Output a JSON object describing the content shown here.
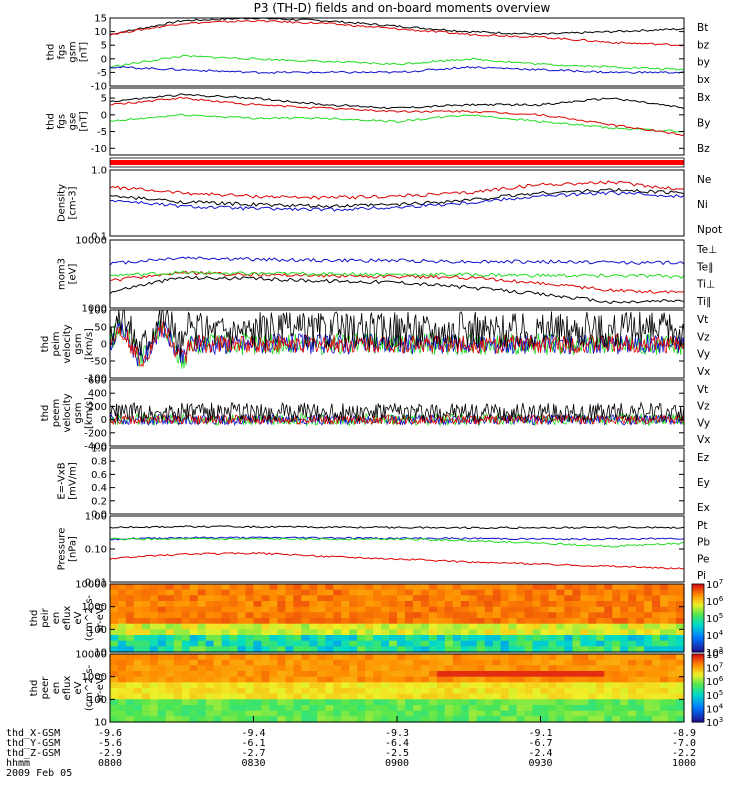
{
  "title": "P3 (TH-D) fields and on-board moments overview",
  "date": "2009 Feb 05",
  "colors": {
    "black": "#000000",
    "red": "#dd0000",
    "green": "#22dd22",
    "blue": "#1010cc"
  },
  "footer": {
    "rows": [
      {
        "label": "thd_X-GSM",
        "values": [
          "-9.6",
          "-9.4",
          "-9.3",
          "-9.1",
          "-8.9"
        ]
      },
      {
        "label": "thd_Y-GSM",
        "values": [
          "-5.6",
          "-6.1",
          "-6.4",
          "-6.7",
          "-7.0"
        ]
      },
      {
        "label": "thd_Z-GSM",
        "values": [
          "-2.9",
          "-2.7",
          "-2.5",
          "-2.4",
          "-2.2"
        ]
      },
      {
        "label": "hhmm",
        "values": [
          "0800",
          "0830",
          "0900",
          "0930",
          "1000"
        ]
      }
    ]
  },
  "chart_data": [
    {
      "type": "line",
      "panel": "fgs_btot",
      "ylabel": [
        "thd",
        "fgs",
        "gsm",
        "[nT]"
      ],
      "ylim": [
        -10,
        15
      ],
      "yticks": [
        "15",
        "10",
        "5",
        "0",
        "-5",
        "-10"
      ],
      "legend": [
        {
          "text": "Bt",
          "color": "black"
        },
        {
          "text": "bz",
          "color": "red"
        },
        {
          "text": "by",
          "color": "green"
        },
        {
          "text": "bx",
          "color": "blue"
        }
      ],
      "x": [
        "0800",
        "0815",
        "0830",
        "0845",
        "0900",
        "0915",
        "0930",
        "0945",
        "1000"
      ],
      "series": [
        {
          "name": "Bt",
          "values": [
            9,
            14,
            15,
            14,
            12,
            10,
            9,
            10,
            11
          ]
        },
        {
          "name": "bz",
          "values": [
            9,
            13,
            14,
            13,
            11,
            9,
            8,
            6,
            5
          ]
        },
        {
          "name": "by",
          "values": [
            -3,
            1,
            0,
            -1,
            -2,
            0,
            -2,
            -3,
            -4
          ]
        },
        {
          "name": "bx",
          "values": [
            -3,
            -4,
            -5,
            -5,
            -5,
            -3,
            -4,
            -5,
            -5
          ]
        }
      ]
    },
    {
      "type": "line",
      "panel": "fgs_gsm",
      "ylabel": [
        "thd",
        "fgs",
        "gse",
        "[nT]"
      ],
      "ylim": [
        -12,
        8
      ],
      "yticks": [
        "5",
        "0",
        "-5",
        "-10"
      ],
      "legend": [
        {
          "text": "Bx",
          "color": "black"
        },
        {
          "text": "By",
          "color": "green"
        },
        {
          "text": "Bz",
          "color": "red"
        }
      ],
      "x": [
        "0800",
        "0815",
        "0830",
        "0845",
        "0900",
        "0915",
        "0930",
        "0945",
        "1000"
      ],
      "series": [
        {
          "name": "Bx",
          "values": [
            4,
            6,
            5,
            3,
            2,
            3,
            3,
            5,
            2
          ]
        },
        {
          "name": "By",
          "values": [
            -2,
            0,
            -1,
            -1,
            -2,
            0,
            -2,
            -4,
            -5
          ]
        },
        {
          "name": "Bz",
          "values": [
            3,
            5,
            3,
            2,
            1,
            1,
            0,
            -3,
            -6
          ]
        }
      ]
    },
    {
      "type": "line",
      "panel": "density",
      "ylabel": [
        "Density",
        "[cm-3]"
      ],
      "yscale": "log",
      "ylim": [
        0.1,
        1.0
      ],
      "yticks": [
        "1.0",
        "0.1"
      ],
      "legend": [
        {
          "text": "Ne",
          "color": "red"
        },
        {
          "text": "Ni",
          "color": "black"
        },
        {
          "text": "Npot",
          "color": "blue"
        }
      ],
      "x": [
        "0800",
        "0815",
        "0830",
        "0845",
        "0900",
        "0915",
        "0930",
        "0945",
        "1000"
      ],
      "series": [
        {
          "name": "Ne",
          "values": [
            0.55,
            0.45,
            0.4,
            0.38,
            0.4,
            0.45,
            0.6,
            0.65,
            0.5
          ]
        },
        {
          "name": "Ni",
          "values": [
            0.4,
            0.33,
            0.3,
            0.28,
            0.3,
            0.35,
            0.45,
            0.5,
            0.45
          ]
        },
        {
          "name": "Npot",
          "values": [
            0.35,
            0.28,
            0.26,
            0.25,
            0.27,
            0.32,
            0.4,
            0.45,
            0.4
          ]
        }
      ]
    },
    {
      "type": "line",
      "panel": "temperature",
      "ylabel": [
        "mom3",
        "[eV]"
      ],
      "yscale": "log",
      "ylim": [
        1000,
        10000
      ],
      "yticks": [
        "10000",
        "1000"
      ],
      "legend": [
        {
          "text": "Te⊥",
          "color": "red"
        },
        {
          "text": "Te∥",
          "color": "black"
        },
        {
          "text": "Ti⊥",
          "color": "red"
        },
        {
          "text": "Ti∥",
          "color": "green"
        }
      ],
      "x": [
        "0800",
        "0815",
        "0830",
        "0845",
        "0900",
        "0915",
        "0930",
        "0945",
        "1000"
      ],
      "series": [
        {
          "name": "Ti",
          "values": [
            4500,
            5500,
            5200,
            5000,
            5000,
            4800,
            4800,
            4700,
            4600
          ]
        },
        {
          "name": "Te⊥",
          "values": [
            2500,
            3300,
            3100,
            3000,
            2900,
            2800,
            2300,
            1800,
            1700
          ]
        },
        {
          "name": "Te∥",
          "values": [
            1700,
            2800,
            2700,
            2500,
            2400,
            2000,
            1600,
            1200,
            1300
          ]
        },
        {
          "name": "Ti∥",
          "values": [
            3000,
            3300,
            3200,
            3200,
            3100,
            3100,
            3000,
            3000,
            2900
          ]
        }
      ]
    },
    {
      "type": "line",
      "panel": "peim_velocity",
      "ylabel": [
        "thd",
        "peim",
        "velocity",
        "gsm",
        "[km/s]"
      ],
      "ylim": [
        -100,
        100
      ],
      "yticks": [
        "100",
        "50",
        "0",
        "-50",
        "-100"
      ],
      "legend": [
        {
          "text": "Vt",
          "color": "black"
        },
        {
          "text": "Vz",
          "color": "red"
        },
        {
          "text": "Vy",
          "color": "green"
        },
        {
          "text": "Vx",
          "color": "blue"
        }
      ],
      "x": [
        "0800",
        "0830",
        "0900",
        "0930",
        "1000"
      ],
      "series": [
        {
          "name": "Vt",
          "values": [
            30,
            35,
            30,
            30,
            30
          ]
        },
        {
          "name": "Vx",
          "values": [
            0,
            0,
            0,
            0,
            0
          ]
        }
      ]
    },
    {
      "type": "line",
      "panel": "peem_velocity",
      "ylabel": [
        "thd",
        "peem",
        "velocity",
        "gsm",
        "[km/s]"
      ],
      "ylim": [
        -400,
        600
      ],
      "yticks": [
        "600",
        "400",
        "200",
        "0",
        "-200",
        "-400"
      ],
      "legend": [
        {
          "text": "Vt",
          "color": "black"
        },
        {
          "text": "Vz",
          "color": "red"
        },
        {
          "text": "Vy",
          "color": "green"
        },
        {
          "text": "Vx",
          "color": "blue"
        }
      ],
      "x": [
        "0800",
        "0830",
        "0900",
        "0930",
        "1000"
      ],
      "series": [
        {
          "name": "Vt",
          "values": [
            150,
            150,
            150,
            150,
            150
          ]
        },
        {
          "name": "Vx",
          "values": [
            0,
            0,
            0,
            0,
            0
          ]
        }
      ]
    },
    {
      "type": "line",
      "panel": "efield",
      "ylabel": [
        "E=-VxB",
        "[mV/m]"
      ],
      "ylim": [
        0,
        1.0
      ],
      "yticks": [
        "1.0",
        "0.8",
        "0.6",
        "0.4",
        "0.2",
        "0.0"
      ],
      "legend": [
        {
          "text": "Ez",
          "color": "red"
        },
        {
          "text": "Ey",
          "color": "green"
        },
        {
          "text": "Ex",
          "color": "blue"
        }
      ],
      "x": [],
      "series": []
    },
    {
      "type": "line",
      "panel": "pressure",
      "ylabel": [
        "Pressure",
        "[nPa]"
      ],
      "yscale": "log",
      "ylim": [
        0.01,
        1.0
      ],
      "yticks": [
        "1.00",
        "0.10",
        "0.01"
      ],
      "legend": [
        {
          "text": "Pt",
          "color": "black"
        },
        {
          "text": "Pb",
          "color": "red"
        },
        {
          "text": "Pe",
          "color": "green"
        },
        {
          "text": "Pi",
          "color": "blue"
        }
      ],
      "x": [
        "0800",
        "0815",
        "0830",
        "0845",
        "0900",
        "0915",
        "0930",
        "0945",
        "1000"
      ],
      "series": [
        {
          "name": "Pt",
          "values": [
            0.45,
            0.48,
            0.47,
            0.46,
            0.45,
            0.44,
            0.44,
            0.45,
            0.45
          ]
        },
        {
          "name": "Pi",
          "values": [
            0.2,
            0.22,
            0.22,
            0.22,
            0.21,
            0.21,
            0.2,
            0.2,
            0.21
          ]
        },
        {
          "name": "Pe",
          "values": [
            0.2,
            0.2,
            0.2,
            0.2,
            0.2,
            0.18,
            0.15,
            0.12,
            0.15
          ]
        },
        {
          "name": "Pb",
          "values": [
            0.05,
            0.07,
            0.075,
            0.06,
            0.05,
            0.04,
            0.035,
            0.03,
            0.025
          ]
        }
      ]
    },
    {
      "type": "heatmap",
      "panel": "peir_eflux",
      "ylabel": [
        "thd",
        "peir",
        "en",
        "eflux",
        "eV",
        "(cm^2-s-",
        "sr-eV)"
      ],
      "yscale": "log",
      "ylim": [
        10,
        10000
      ],
      "yticks": [
        "10000",
        "1000",
        "100",
        "10"
      ],
      "colorbar": {
        "ticks": [
          "10^7",
          "10^6",
          "10^5",
          "10^4",
          "10^3"
        ]
      }
    },
    {
      "type": "heatmap",
      "panel": "peer_eflux",
      "ylabel": [
        "thd",
        "peer",
        "en",
        "eflux",
        "eV",
        "(cm^2-s-",
        "sr-eV)"
      ],
      "yscale": "log",
      "ylim": [
        10,
        10000
      ],
      "yticks": [
        "10000",
        "1000",
        "100",
        "10"
      ],
      "colorbar": {
        "ticks": [
          "10^8",
          "10^7",
          "10^6",
          "10^5",
          "10^4",
          "10^3"
        ]
      }
    }
  ]
}
